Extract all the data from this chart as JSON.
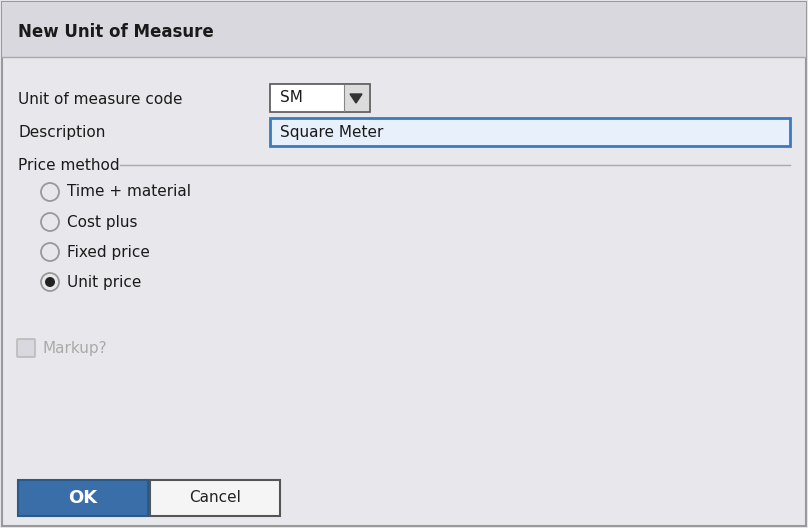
{
  "title": "New Unit of Measure",
  "bg_color": "#e8e8ec",
  "header_bg": "#d8d8de",
  "header_text": "New Unit of Measure",
  "header_font_size": 12,
  "field_label_1": "Unit of measure code",
  "field_value_1": "SM",
  "field_label_2": "Description",
  "field_value_2": "Square Meter",
  "group_label": "Price method",
  "radio_options": [
    "Time + material",
    "Cost plus",
    "Fixed price",
    "Unit price"
  ],
  "radio_selected": 3,
  "checkbox_label": "Markup?",
  "checkbox_checked": false,
  "btn_ok_label": "OK",
  "btn_ok_bg": "#3a6ea8",
  "btn_ok_text_color": "#ffffff",
  "btn_cancel_label": "Cancel",
  "btn_cancel_bg": "#f5f5f5",
  "btn_cancel_text_color": "#222222",
  "input_bg": "#e8f0fb",
  "input_border": "#3a7bbf",
  "dropdown_bg": "#ffffff",
  "dropdown_border": "#555555",
  "text_color": "#1a1a1a",
  "radio_border": "#aaaaaa",
  "font_size": 11,
  "fig_width": 8.08,
  "fig_height": 5.28,
  "dpi": 100
}
